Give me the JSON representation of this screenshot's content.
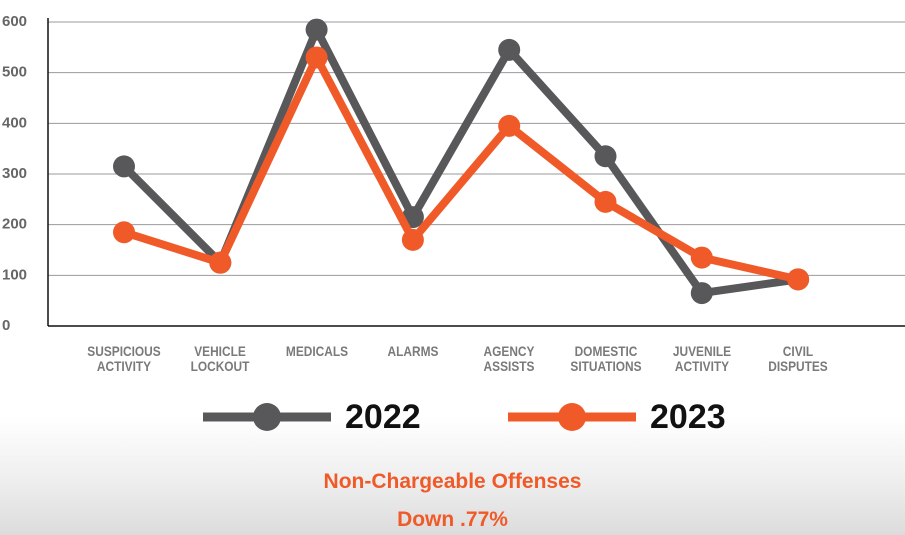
{
  "chart_data": {
    "type": "line",
    "categories": [
      "SUSPICIOUS ACTIVITY",
      "VEHICLE LOCKOUT",
      "MEDICALS",
      "ALARMS",
      "AGENCY ASSISTS",
      "DOMESTIC SITUATIONS",
      "JUVENILE ACTIVITY",
      "CIVIL DISPUTES"
    ],
    "series": [
      {
        "name": "2022",
        "color": "#58585a",
        "values": [
          315,
          125,
          585,
          215,
          545,
          335,
          65,
          92
        ]
      },
      {
        "name": "2023",
        "color": "#f05a28",
        "values": [
          185,
          125,
          530,
          170,
          395,
          245,
          135,
          92
        ]
      }
    ],
    "ylim": [
      0,
      600
    ],
    "yticks": [
      0,
      100,
      200,
      300,
      400,
      500,
      600
    ],
    "grid": true,
    "notes": [
      "Non-Chargeable Offenses",
      "Down .77%"
    ]
  }
}
